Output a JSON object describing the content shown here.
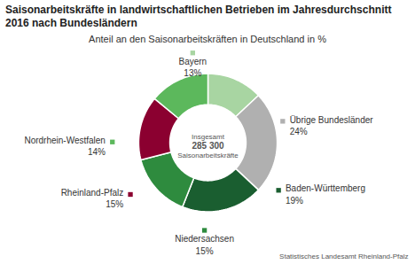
{
  "chart_data": {
    "type": "donut",
    "title": "Saisonarbeitskräfte in landwirtschaftlichen Betrieben im Jahresdurchschnitt 2016 nach Bundesländern",
    "subtitle": "Anteil an den Saisonarbeitskräften in Deutschland in %",
    "center_text": [
      "Insgesamt",
      "285 300",
      "Saisonarbeitskräfte"
    ],
    "source": "Statistisches Landesamt Rheinland-Pfalz",
    "categories": [
      "Bayern",
      "Übrige Bundesländer",
      "Baden-Württemberg",
      "Niedersachsen",
      "Rheinland-Pfalz",
      "Nordrhein-Westfalen"
    ],
    "values": [
      13,
      24,
      19,
      15,
      15,
      14
    ],
    "value_labels": [
      "13%",
      "24%",
      "19%",
      "15%",
      "15%",
      "14%"
    ],
    "colors": [
      "#a8d5a2",
      "#b0b0b0",
      "#1a5e30",
      "#2e8b3e",
      "#8b0030",
      "#5cb85c"
    ],
    "data_labels": true
  }
}
